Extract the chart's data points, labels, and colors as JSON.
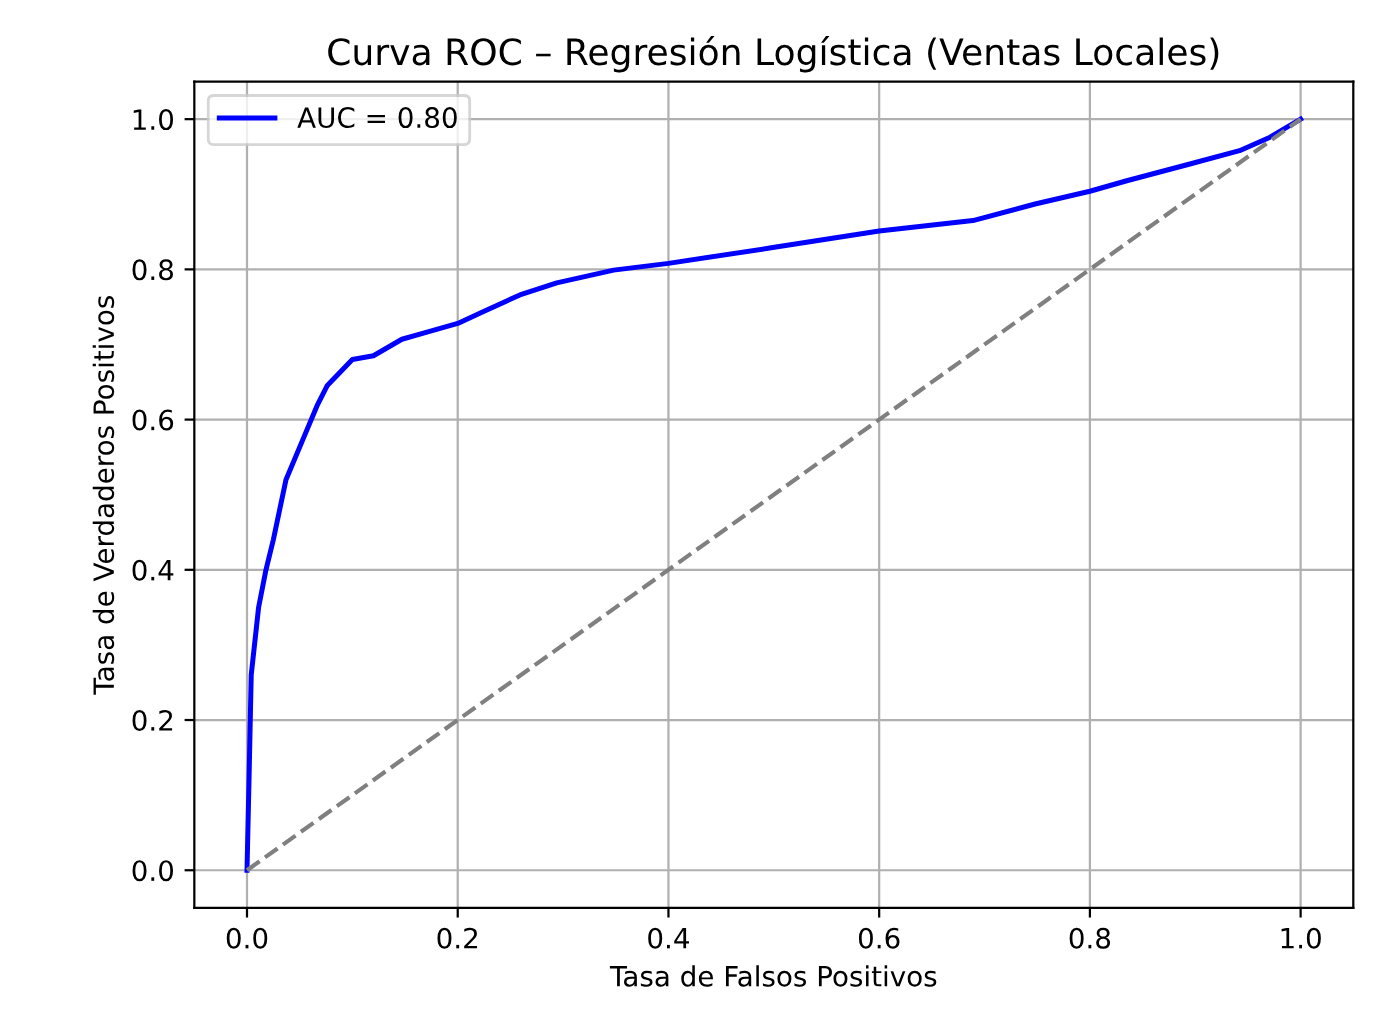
{
  "chart_data": {
    "type": "line",
    "title": "Curva ROC – Regresión Logística (Ventas Locales)",
    "xlabel": "Tasa de Falsos Positivos",
    "ylabel": "Tasa de Verdaderos Positivos",
    "series": [
      {
        "name": "AUC = 0.80",
        "color": "#0000ff",
        "line_style": "solid",
        "x": [
          0,
          0.002,
          0.004,
          0.011,
          0.018,
          0.025,
          0.037,
          0.052,
          0.067,
          0.076,
          0.1,
          0.12,
          0.147,
          0.17,
          0.2,
          0.223,
          0.259,
          0.294,
          0.348,
          0.4,
          0.499,
          0.6,
          0.689,
          0.748,
          0.8,
          0.835,
          0.894,
          0.942,
          0.971,
          1
        ],
        "values": [
          0,
          0.126,
          0.26,
          0.35,
          0.4,
          0.44,
          0.52,
          0.57,
          0.62,
          0.645,
          0.68,
          0.685,
          0.707,
          0.716,
          0.728,
          0.743,
          0.766,
          0.782,
          0.799,
          0.808,
          0.829,
          0.851,
          0.865,
          0.887,
          0.904,
          0.918,
          0.94,
          0.958,
          0.976,
          1
        ]
      },
      {
        "color": "#808080",
        "line_style": "dashed",
        "x": [
          0,
          1
        ],
        "values": [
          0,
          1
        ]
      }
    ],
    "xlim": [
      -0.05,
      1.05
    ],
    "ylim": [
      -0.05,
      1.05
    ],
    "xticks": [
      {
        "value": 0,
        "label": "0.0"
      },
      0.2,
      0.4,
      0.6,
      0.8,
      {
        "value": 1,
        "label": "1.0"
      }
    ],
    "yticks": [
      {
        "value": 0,
        "label": "0.0"
      },
      0.2,
      0.4,
      0.6,
      0.8,
      {
        "value": 1,
        "label": "1.0"
      }
    ],
    "grid": true,
    "legend": "upper left"
  }
}
